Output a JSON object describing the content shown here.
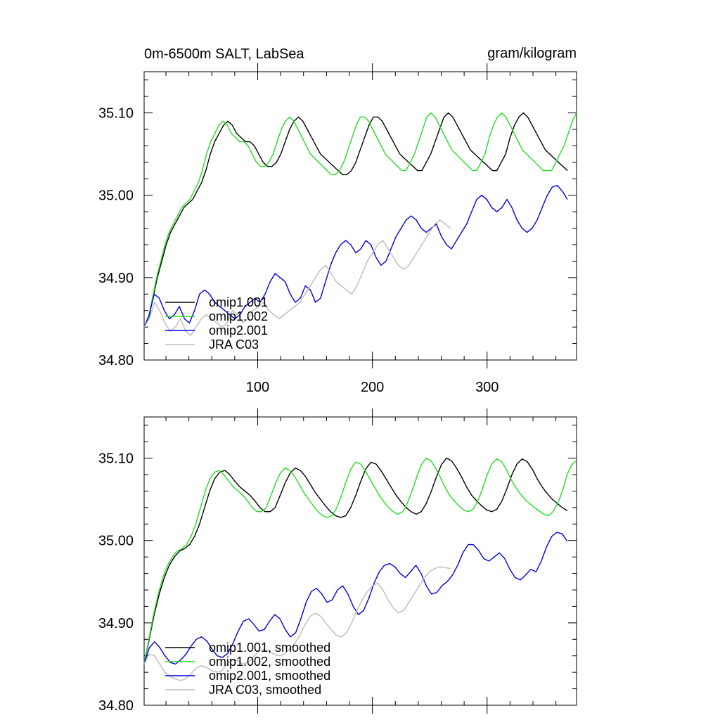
{
  "chart_data": [
    {
      "type": "line",
      "title_left": "0m-6500m SALT, LabSea",
      "title_right": "gram/kilogram",
      "xlim": [
        1,
        378
      ],
      "ylim": [
        34.8,
        35.15
      ],
      "xticks": [
        100,
        200,
        300
      ],
      "xtick_labels": [
        "100",
        "200",
        "300"
      ],
      "yticks": [
        34.8,
        34.9,
        35.0,
        35.1
      ],
      "ytick_labels": [
        "34.80",
        "34.90",
        "35.00",
        "35.10"
      ],
      "legend_position": "bottom-left",
      "series": [
        {
          "name": "omip1.001",
          "color": "#000000",
          "values": [
            34.84,
            34.85,
            34.875,
            34.9,
            34.92,
            34.94,
            34.955,
            34.965,
            34.975,
            34.985,
            34.99,
            34.995,
            35.005,
            35.015,
            35.03,
            35.05,
            35.065,
            35.075,
            35.085,
            35.09,
            35.085,
            35.075,
            35.07,
            35.065,
            35.065,
            35.06,
            35.05,
            35.04,
            35.035,
            35.035,
            35.04,
            35.05,
            35.065,
            35.08,
            35.09,
            35.095,
            35.09,
            35.08,
            35.07,
            35.06,
            35.05,
            35.045,
            35.04,
            35.035,
            35.03,
            35.025,
            35.025,
            35.03,
            35.04,
            35.055,
            35.07,
            35.085,
            35.095,
            35.095,
            35.09,
            35.08,
            35.07,
            35.06,
            35.05,
            35.045,
            35.04,
            35.035,
            35.03,
            35.03,
            35.04,
            35.05,
            35.065,
            35.08,
            35.095,
            35.1,
            35.095,
            35.085,
            35.075,
            35.065,
            35.055,
            35.05,
            35.045,
            35.04,
            35.035,
            35.03,
            35.03,
            35.04,
            35.05,
            35.07,
            35.085,
            35.095,
            35.1,
            35.095,
            35.085,
            35.075,
            35.065,
            35.055,
            35.05,
            35.045,
            35.04,
            35.035,
            35.03
          ]
        },
        {
          "name": "omip1.002",
          "color": "#22dd22",
          "values": [
            34.84,
            34.85,
            34.875,
            34.9,
            34.92,
            34.94,
            34.955,
            34.965,
            34.975,
            34.985,
            34.99,
            34.995,
            35.005,
            35.015,
            35.03,
            35.05,
            35.065,
            35.075,
            35.085,
            35.09,
            35.085,
            35.075,
            35.07,
            35.065,
            35.065,
            35.06,
            35.05,
            35.04,
            35.035,
            35.035,
            35.04,
            35.05,
            35.065,
            35.08,
            35.09,
            35.095,
            35.09,
            35.08,
            35.07,
            35.06,
            35.05,
            35.045,
            35.04,
            35.035,
            35.03,
            35.025,
            35.025,
            35.03,
            35.04,
            35.055,
            35.07,
            35.085,
            35.095,
            35.095,
            35.09,
            35.08,
            35.07,
            35.06,
            35.05,
            35.045,
            35.04,
            35.035,
            35.03,
            35.03,
            35.04,
            35.05,
            35.065,
            35.08,
            35.095,
            35.1,
            35.095,
            35.085,
            35.075,
            35.065,
            35.055,
            35.05,
            35.045,
            35.04,
            35.035,
            35.03,
            35.03,
            35.04,
            35.05,
            35.07,
            35.085,
            35.095,
            35.1,
            35.095,
            35.085,
            35.075,
            35.065,
            35.055,
            35.05,
            35.045,
            35.04,
            35.035,
            35.03,
            35.03,
            35.03,
            35.04,
            35.05,
            35.06,
            35.075,
            35.09,
            35.1
          ]
        },
        {
          "name": "omip2.001",
          "color": "#0000dd",
          "values": [
            34.84,
            34.855,
            34.88,
            34.875,
            34.86,
            34.85,
            34.855,
            34.865,
            34.85,
            34.845,
            34.86,
            34.88,
            34.885,
            34.88,
            34.87,
            34.865,
            34.86,
            34.855,
            34.85,
            34.855,
            34.865,
            34.87,
            34.875,
            34.87,
            34.88,
            34.895,
            34.905,
            34.9,
            34.895,
            34.88,
            34.87,
            34.875,
            34.89,
            34.885,
            34.87,
            34.875,
            34.895,
            34.915,
            34.93,
            34.94,
            34.945,
            34.94,
            34.93,
            34.935,
            34.945,
            34.94,
            34.925,
            34.915,
            34.92,
            34.935,
            34.95,
            34.96,
            34.97,
            34.975,
            34.97,
            34.96,
            34.955,
            34.96,
            34.965,
            34.95,
            34.94,
            34.935,
            34.945,
            34.955,
            34.965,
            34.98,
            34.995,
            35.0,
            34.995,
            34.985,
            34.98,
            34.985,
            34.995,
            34.985,
            34.97,
            34.96,
            34.955,
            34.96,
            34.97,
            34.985,
            35.0,
            35.01,
            35.012,
            35.005,
            34.995
          ]
        },
        {
          "name": "JRA C03",
          "color": "#bbbbbb",
          "values": [
            34.84,
            34.85,
            34.87,
            34.86,
            34.845,
            34.835,
            34.84,
            34.85,
            34.835,
            34.83,
            34.84,
            34.85,
            34.855,
            34.85,
            34.845,
            34.84,
            34.845,
            34.86,
            34.855,
            34.845,
            34.85,
            34.86,
            34.865,
            34.87,
            34.86,
            34.855,
            34.85,
            34.855,
            34.86,
            34.865,
            34.87,
            34.88,
            34.89,
            34.9,
            34.91,
            34.915,
            34.905,
            34.895,
            34.89,
            34.885,
            34.88,
            34.89,
            34.905,
            34.92,
            34.93,
            34.94,
            34.945,
            34.935,
            34.925,
            34.915,
            34.91,
            34.915,
            34.925,
            34.935,
            34.945,
            34.955,
            34.965,
            34.97,
            34.965,
            34.96
          ]
        }
      ],
      "legend": [
        "omip1.001",
        "omip1.002",
        "omip2.001",
        "JRA C03"
      ]
    },
    {
      "type": "line",
      "xlim": [
        1,
        378
      ],
      "ylim": [
        34.8,
        35.15
      ],
      "xticks": [
        100,
        200,
        300
      ],
      "xtick_labels": [],
      "yticks": [
        34.8,
        34.9,
        35.0,
        35.1
      ],
      "ytick_labels": [
        "34.80",
        "34.90",
        "35.00",
        "35.10"
      ],
      "legend_position": "bottom-left",
      "series": [
        {
          "name": "omip1.001, smoothed",
          "color": "#000000",
          "values": [
            34.85,
            34.88,
            34.91,
            34.935,
            34.955,
            34.97,
            34.98,
            34.987,
            34.99,
            34.995,
            35.005,
            35.02,
            35.04,
            35.06,
            35.075,
            35.083,
            35.085,
            35.08,
            35.072,
            35.065,
            35.06,
            35.055,
            35.048,
            35.04,
            35.035,
            35.035,
            35.04,
            35.055,
            35.07,
            35.082,
            35.088,
            35.085,
            35.078,
            35.068,
            35.058,
            35.05,
            35.042,
            35.035,
            35.03,
            35.028,
            35.03,
            35.04,
            35.055,
            35.072,
            35.087,
            35.095,
            35.093,
            35.085,
            35.075,
            35.065,
            35.055,
            35.047,
            35.04,
            35.035,
            35.032,
            35.035,
            35.045,
            35.06,
            35.077,
            35.092,
            35.1,
            35.097,
            35.088,
            35.077,
            35.065,
            35.055,
            35.048,
            35.042,
            35.037,
            35.035,
            35.038,
            35.048,
            35.063,
            35.08,
            35.093,
            35.099,
            35.096,
            35.087,
            35.075,
            35.065,
            35.057,
            35.05,
            35.045,
            35.04,
            35.036
          ]
        },
        {
          "name": "omip1.002, smoothed",
          "color": "#22dd22",
          "values": [
            34.85,
            34.88,
            34.91,
            34.935,
            34.955,
            34.97,
            34.98,
            34.987,
            34.99,
            34.995,
            35.005,
            35.02,
            35.04,
            35.06,
            35.075,
            35.083,
            35.085,
            35.08,
            35.072,
            35.065,
            35.06,
            35.055,
            35.048,
            35.04,
            35.035,
            35.035,
            35.04,
            35.055,
            35.07,
            35.082,
            35.088,
            35.085,
            35.078,
            35.068,
            35.058,
            35.05,
            35.042,
            35.035,
            35.03,
            35.028,
            35.03,
            35.04,
            35.055,
            35.072,
            35.087,
            35.095,
            35.093,
            35.085,
            35.075,
            35.065,
            35.055,
            35.047,
            35.04,
            35.035,
            35.032,
            35.035,
            35.045,
            35.06,
            35.077,
            35.092,
            35.1,
            35.097,
            35.088,
            35.077,
            35.065,
            35.055,
            35.048,
            35.042,
            35.037,
            35.035,
            35.038,
            35.048,
            35.063,
            35.08,
            35.093,
            35.099,
            35.096,
            35.087,
            35.075,
            35.065,
            35.057,
            35.05,
            35.045,
            35.04,
            35.036,
            35.032,
            35.03,
            35.035,
            35.045,
            35.06,
            35.08,
            35.092,
            35.097
          ]
        },
        {
          "name": "omip2.001, smoothed",
          "color": "#0000dd",
          "values": [
            34.85,
            34.87,
            34.877,
            34.87,
            34.86,
            34.852,
            34.85,
            34.855,
            34.862,
            34.872,
            34.88,
            34.883,
            34.878,
            34.868,
            34.86,
            34.858,
            34.863,
            34.875,
            34.89,
            34.902,
            34.905,
            34.898,
            34.89,
            34.892,
            34.902,
            34.91,
            34.905,
            34.892,
            34.883,
            34.888,
            34.905,
            34.925,
            34.938,
            34.942,
            34.935,
            34.925,
            34.928,
            34.94,
            34.945,
            34.935,
            34.92,
            34.91,
            34.915,
            34.93,
            34.948,
            34.962,
            34.97,
            34.972,
            34.968,
            34.96,
            34.955,
            34.962,
            34.97,
            34.96,
            34.945,
            34.935,
            34.937,
            34.945,
            34.95,
            34.958,
            34.97,
            34.985,
            34.995,
            34.995,
            34.988,
            34.978,
            34.975,
            34.98,
            34.985,
            34.978,
            34.965,
            34.955,
            34.952,
            34.958,
            34.965,
            34.962,
            34.975,
            34.992,
            35.005,
            35.01,
            35.008,
            34.999
          ]
        },
        {
          "name": "JRA C03, smoothed",
          "color": "#bbbbbb",
          "values": [
            34.85,
            34.862,
            34.86,
            34.85,
            34.84,
            34.835,
            34.832,
            34.83,
            34.832,
            34.838,
            34.845,
            34.848,
            34.846,
            34.842,
            34.84,
            34.842,
            34.85,
            34.855,
            34.854,
            34.85,
            34.852,
            34.858,
            34.865,
            34.868,
            34.866,
            34.862,
            34.86,
            34.862,
            34.868,
            34.875,
            34.885,
            34.898,
            34.908,
            34.912,
            34.908,
            34.9,
            34.892,
            34.885,
            34.883,
            34.888,
            34.9,
            34.915,
            34.928,
            34.938,
            34.945,
            34.948,
            34.94,
            34.928,
            34.918,
            34.912,
            34.915,
            34.925,
            34.935,
            34.945,
            34.955,
            34.962,
            34.966,
            34.968,
            34.967,
            34.966
          ]
        }
      ],
      "legend": [
        "omip1.001, smoothed",
        "omip1.002, smoothed",
        "omip2.001, smoothed",
        "JRA C03, smoothed"
      ]
    }
  ]
}
